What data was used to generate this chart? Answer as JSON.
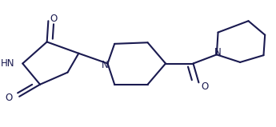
{
  "bg_color": "#ffffff",
  "line_color": "#1a1a50",
  "line_width": 1.5,
  "figsize": [
    3.45,
    1.59
  ],
  "dpi": 100,
  "atoms": {
    "HN_label": "HN",
    "N_label": "N",
    "N2_label": "N",
    "O1_label": "O",
    "O2_label": "O",
    "O3_label": "O"
  }
}
